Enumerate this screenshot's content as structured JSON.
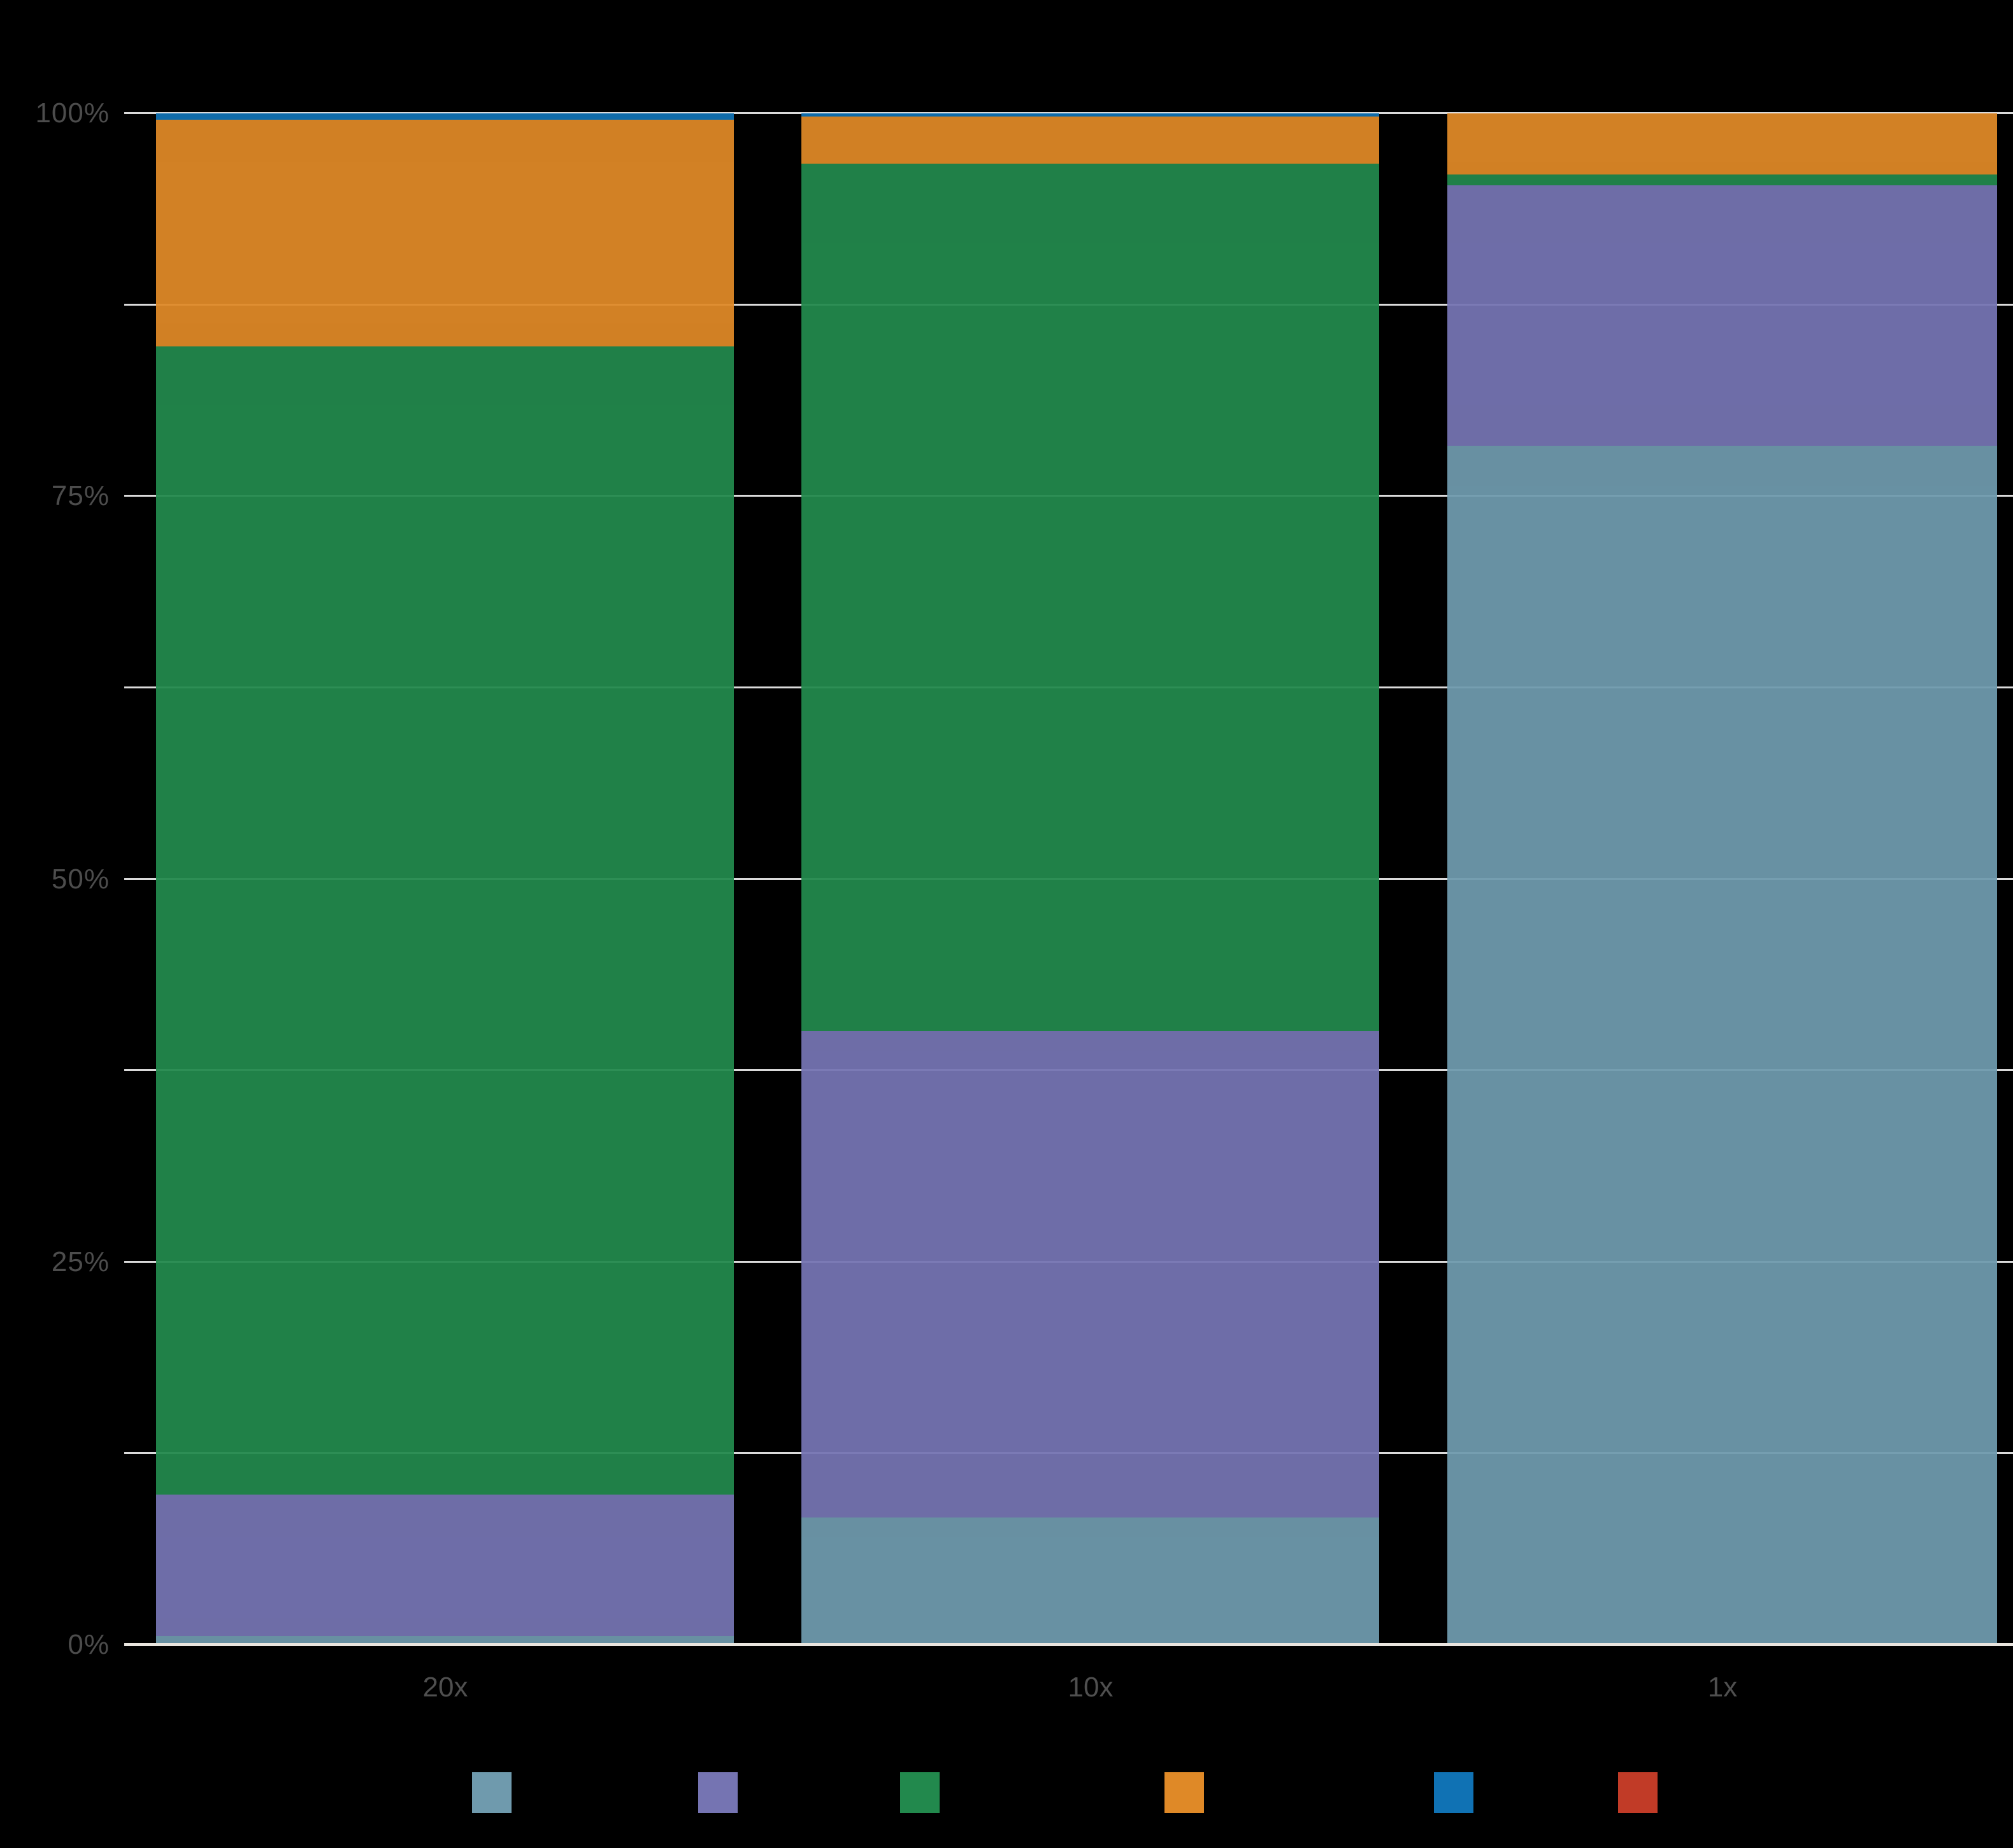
{
  "figure": {
    "background_color": "#000000",
    "title": "",
    "legend_labels_visible": false
  },
  "chart_data": {
    "type": "bar",
    "stacked": true,
    "normalized": true,
    "orientation": "vertical",
    "categories": [
      "20x",
      "10x",
      "1x"
    ],
    "series": [
      {
        "name": "steel-blue",
        "color": "#6F9AAD",
        "values": [
          0.6,
          8.3,
          78.3
        ]
      },
      {
        "name": "purple",
        "color": "#7574B2",
        "values": [
          9.2,
          31.8,
          17.0
        ]
      },
      {
        "name": "green",
        "color": "#22894D",
        "values": [
          75.0,
          56.6,
          0.7
        ]
      },
      {
        "name": "orange",
        "color": "#DF8927",
        "values": [
          14.8,
          3.1,
          4.0
        ]
      },
      {
        "name": "blue",
        "color": "#1072B4",
        "values": [
          0.4,
          0.2,
          0.0
        ]
      },
      {
        "name": "red",
        "color": "#C13B27",
        "values": [
          0.0,
          0.0,
          0.0
        ]
      }
    ],
    "xlabel": "",
    "ylabel": "",
    "ylim": [
      0,
      100
    ],
    "grid": true,
    "y_axis": {
      "ticks": [
        {
          "value": 0,
          "label": "0%"
        },
        {
          "value": 12.5,
          "label": ""
        },
        {
          "value": 25,
          "label": "25%"
        },
        {
          "value": 37.5,
          "label": ""
        },
        {
          "value": 50,
          "label": "50%"
        },
        {
          "value": 62.5,
          "label": ""
        },
        {
          "value": 75,
          "label": "75%"
        },
        {
          "value": 87.5,
          "label": ""
        },
        {
          "value": 100,
          "label": "100%"
        }
      ]
    },
    "legend_position": "bottom"
  }
}
